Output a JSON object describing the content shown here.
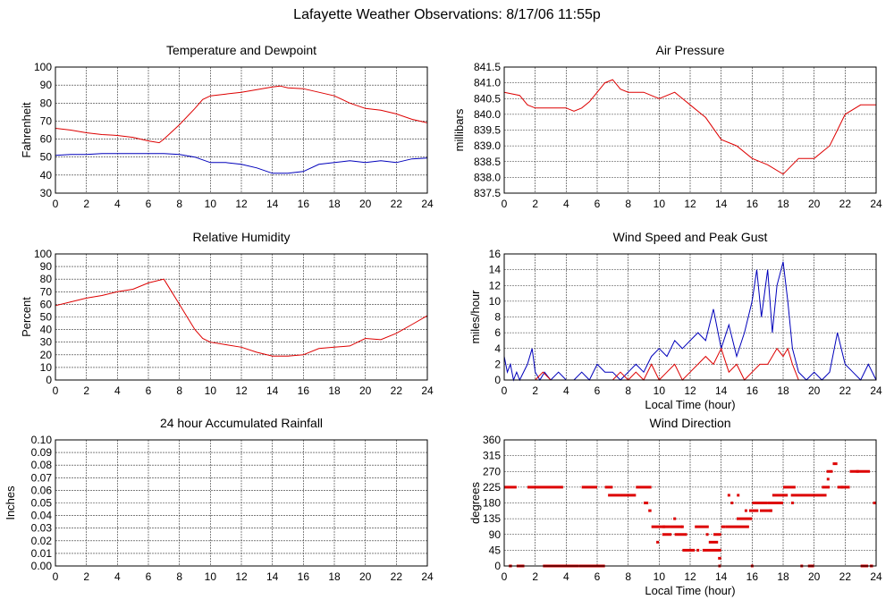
{
  "page": {
    "title": "Lafayette Weather Observations: 8/17/06 11:55p"
  },
  "colors": {
    "red": "#dd0000",
    "blue": "#0000bb"
  },
  "chart_data": [
    {
      "id": "temp",
      "type": "line",
      "title": "Temperature and Dewpoint",
      "ylabel": "Fahrenheit",
      "xlabel": "",
      "xlim": [
        0,
        24
      ],
      "ylim": [
        30,
        100
      ],
      "xticks": [
        0,
        2,
        4,
        6,
        8,
        10,
        12,
        14,
        16,
        18,
        20,
        22,
        24
      ],
      "yticks": [
        30,
        40,
        50,
        60,
        70,
        80,
        90,
        100
      ],
      "grid": true,
      "series": [
        {
          "color": "red",
          "x": [
            0,
            1,
            2,
            3,
            4,
            5,
            6,
            6.7,
            7,
            8,
            9,
            9.5,
            10,
            11,
            12,
            13,
            14,
            14.5,
            15,
            16,
            17,
            18,
            19,
            20,
            21,
            22,
            23,
            24
          ],
          "y": [
            66,
            65,
            63.5,
            62.5,
            62,
            61,
            59,
            58,
            60,
            68,
            77,
            82,
            84,
            85,
            86,
            87.5,
            89,
            89.5,
            88.5,
            88,
            86,
            84,
            80,
            77,
            76,
            74,
            71,
            69
          ]
        },
        {
          "color": "blue",
          "x": [
            0,
            1,
            2,
            3,
            4,
            5,
            6,
            7,
            8,
            9,
            10,
            11,
            12,
            13,
            14,
            15,
            16,
            17,
            18,
            19,
            20,
            21,
            22,
            23,
            24
          ],
          "y": [
            51,
            51.5,
            51.5,
            52,
            52,
            52,
            52,
            52,
            51.5,
            50,
            47,
            47,
            46,
            44,
            41,
            41,
            42,
            46,
            47,
            48,
            47,
            48,
            47,
            49,
            49.5
          ]
        }
      ]
    },
    {
      "id": "pressure",
      "type": "line",
      "title": "Air Pressure",
      "ylabel": "millibars",
      "xlabel": "",
      "xlim": [
        0,
        24
      ],
      "ylim": [
        837.5,
        841.5
      ],
      "xticks": [
        0,
        2,
        4,
        6,
        8,
        10,
        12,
        14,
        16,
        18,
        20,
        22,
        24
      ],
      "yticks": [
        837.5,
        838.0,
        838.5,
        839.0,
        839.5,
        840.0,
        840.5,
        841.0,
        841.5
      ],
      "ytick_labels": [
        "837.5",
        "838.0",
        "838.5",
        "839.0",
        "839.5",
        "840.0",
        "840.5",
        "841.0",
        "841.5"
      ],
      "grid": true,
      "series": [
        {
          "color": "red",
          "x": [
            0,
            1,
            1.5,
            2,
            3,
            4,
            4.5,
            5,
            5.5,
            6,
            6.5,
            7,
            7.5,
            8,
            9,
            10,
            11,
            12,
            13,
            14,
            15,
            16,
            17,
            18,
            19,
            20,
            21,
            21.5,
            22,
            23,
            24
          ],
          "y": [
            840.7,
            840.6,
            840.3,
            840.2,
            840.2,
            840.2,
            840.1,
            840.2,
            840.4,
            840.7,
            841.0,
            841.1,
            840.8,
            840.7,
            840.7,
            840.5,
            840.7,
            840.3,
            839.9,
            839.2,
            839.0,
            838.6,
            838.4,
            838.1,
            838.6,
            838.6,
            839.0,
            839.5,
            840.0,
            840.3,
            840.3
          ]
        }
      ]
    },
    {
      "id": "humidity",
      "type": "line",
      "title": "Relative Humidity",
      "ylabel": "Percent",
      "xlabel": "",
      "xlim": [
        0,
        24
      ],
      "ylim": [
        0,
        100
      ],
      "xticks": [
        0,
        2,
        4,
        6,
        8,
        10,
        12,
        14,
        16,
        18,
        20,
        22,
        24
      ],
      "yticks": [
        0,
        10,
        20,
        30,
        40,
        50,
        60,
        70,
        80,
        90,
        100
      ],
      "grid": true,
      "series": [
        {
          "color": "red",
          "x": [
            0,
            1,
            2,
            3,
            4,
            5,
            6,
            7,
            7.5,
            8,
            8.5,
            9,
            9.5,
            10,
            11,
            12,
            13,
            14,
            15,
            16,
            17,
            18,
            19,
            20,
            21,
            22,
            23,
            24
          ],
          "y": [
            59,
            62,
            65,
            67,
            70,
            72,
            77,
            80,
            70,
            60,
            50,
            40,
            33,
            30,
            28,
            26,
            22,
            19,
            19,
            20,
            25,
            26,
            27,
            33,
            32,
            37,
            44,
            51
          ]
        }
      ]
    },
    {
      "id": "wind",
      "type": "line",
      "title": "Wind Speed and Peak Gust",
      "ylabel": "miles/hour",
      "xlabel": "Local Time (hour)",
      "xlim": [
        0,
        24
      ],
      "ylim": [
        0,
        16
      ],
      "xticks": [
        0,
        2,
        4,
        6,
        8,
        10,
        12,
        14,
        16,
        18,
        20,
        22,
        24
      ],
      "yticks": [
        0,
        2,
        4,
        6,
        8,
        10,
        12,
        14,
        16
      ],
      "grid": true,
      "series": [
        {
          "color": "blue",
          "x": [
            0,
            0.2,
            0.4,
            0.6,
            0.8,
            1,
            1.5,
            1.8,
            2,
            2.3,
            2.6,
            3,
            3.5,
            4,
            4.5,
            5,
            5.5,
            6,
            6.5,
            7,
            7.5,
            8,
            8.5,
            9,
            9.5,
            10,
            10.5,
            11,
            11.5,
            12,
            12.5,
            13,
            13.5,
            14,
            14.5,
            15,
            15.5,
            16,
            16.3,
            16.6,
            17,
            17.3,
            17.6,
            18,
            18.3,
            18.6,
            19,
            19.5,
            20,
            20.5,
            21,
            21.5,
            22,
            22.5,
            23,
            23.5,
            24
          ],
          "y": [
            3,
            1,
            2,
            0,
            1,
            0,
            2,
            4,
            1,
            0,
            1,
            0,
            1,
            0,
            0,
            1,
            0,
            2,
            1,
            1,
            0,
            1,
            2,
            1,
            3,
            4,
            3,
            5,
            4,
            5,
            6,
            5,
            9,
            4,
            7,
            3,
            6,
            10,
            14,
            8,
            14,
            6,
            12,
            15,
            10,
            4,
            1,
            0,
            1,
            0,
            1,
            6,
            2,
            1,
            0,
            2,
            0
          ]
        },
        {
          "color": "red",
          "x": [
            0,
            1,
            2,
            2.5,
            3,
            4,
            5,
            6,
            7,
            7.5,
            8,
            8.5,
            9,
            9.5,
            10,
            10.5,
            11,
            11.5,
            12,
            12.5,
            13,
            13.5,
            14,
            14.5,
            15,
            15.5,
            16,
            16.5,
            17,
            17.3,
            17.6,
            18,
            18.3,
            18.6,
            19,
            20,
            21,
            22,
            23,
            24
          ],
          "y": [
            0,
            0,
            0,
            1,
            0,
            0,
            0,
            0,
            0,
            1,
            0,
            1,
            0,
            2,
            0,
            1,
            2,
            0,
            1,
            2,
            3,
            2,
            4,
            1,
            2,
            0,
            1,
            2,
            2,
            3,
            4,
            3,
            4,
            2,
            0,
            0,
            0,
            0,
            0,
            0
          ]
        }
      ]
    },
    {
      "id": "rain",
      "type": "line",
      "title": "24 hour Accumulated Rainfall",
      "ylabel": "Inches",
      "xlabel": "",
      "xlim": [
        0,
        24
      ],
      "ylim": [
        0,
        0.1
      ],
      "xticks": [
        0,
        2,
        4,
        6,
        8,
        10,
        12,
        14,
        16,
        18,
        20,
        22,
        24
      ],
      "yticks": [
        0,
        0.01,
        0.02,
        0.03,
        0.04,
        0.05,
        0.06,
        0.07,
        0.08,
        0.09,
        0.1
      ],
      "ytick_labels": [
        "0.00",
        "0.01",
        "0.02",
        "0.03",
        "0.04",
        "0.05",
        "0.06",
        "0.07",
        "0.08",
        "0.09",
        "0.10"
      ],
      "grid": true,
      "series": [
        {
          "color": "red",
          "x": [
            0,
            24
          ],
          "y": [
            0,
            0
          ]
        }
      ]
    },
    {
      "id": "direction",
      "type": "scatter",
      "title": "Wind Direction",
      "ylabel": "degrees",
      "xlabel": "Local Time (hour)",
      "xlim": [
        0,
        24
      ],
      "ylim": [
        0,
        360
      ],
      "xticks": [
        0,
        2,
        4,
        6,
        8,
        10,
        12,
        14,
        16,
        18,
        20,
        22,
        24
      ],
      "yticks": [
        0,
        45,
        90,
        135,
        180,
        225,
        270,
        315,
        360
      ],
      "grid": true,
      "series": [
        {
          "color": "red",
          "segments": [
            [
              0,
              0.8,
              225
            ],
            [
              0.3,
              0.5,
              0
            ],
            [
              0.8,
              1.3,
              0
            ],
            [
              1.5,
              3.8,
              225
            ],
            [
              2.5,
              4.8,
              0
            ],
            [
              4.8,
              6.5,
              0
            ],
            [
              5,
              6,
              225
            ],
            [
              6.5,
              7,
              225
            ],
            [
              6.7,
              8.5,
              202
            ],
            [
              8.5,
              9.5,
              225
            ],
            [
              9,
              9.3,
              180
            ],
            [
              9.3,
              9.5,
              158
            ],
            [
              9.5,
              10.7,
              112
            ],
            [
              10.2,
              10.8,
              90
            ],
            [
              10.7,
              11.5,
              112
            ],
            [
              11,
              11.8,
              90
            ],
            [
              11.5,
              12.3,
              45
            ],
            [
              12.3,
              13.2,
              112
            ],
            [
              12.8,
              14,
              45
            ],
            [
              13.2,
              13.8,
              68
            ],
            [
              13.5,
              14,
              90
            ],
            [
              13.8,
              14,
              22
            ],
            [
              14,
              14.3,
              112
            ],
            [
              14.3,
              15.8,
              112
            ],
            [
              15,
              16,
              135
            ],
            [
              15.8,
              16.4,
              158
            ],
            [
              16,
              17,
              180
            ],
            [
              16.5,
              17.3,
              158
            ],
            [
              17,
              18,
              180
            ],
            [
              17.3,
              18.3,
              202
            ],
            [
              18,
              18.8,
              225
            ],
            [
              18.5,
              20.8,
              202
            ],
            [
              19.6,
              20,
              0
            ],
            [
              20.5,
              21,
              225
            ],
            [
              20.8,
              21.2,
              270
            ],
            [
              21.2,
              21.5,
              292
            ],
            [
              21.5,
              22.3,
              225
            ],
            [
              22.3,
              23.6,
              270
            ],
            [
              23,
              23.4,
              0
            ],
            [
              23.6,
              23.8,
              0
            ],
            [
              23.8,
              24,
              180
            ]
          ],
          "points": [
            [
              9.9,
              68
            ],
            [
              10.3,
              112
            ],
            [
              11,
              135
            ],
            [
              11.5,
              112
            ],
            [
              12.5,
              45
            ],
            [
              13.1,
              90
            ],
            [
              13.9,
              0
            ],
            [
              14.5,
              202
            ],
            [
              14.7,
              180
            ],
            [
              15.1,
              202
            ],
            [
              15.6,
              158
            ],
            [
              16,
              0
            ],
            [
              17.2,
              158
            ],
            [
              18.6,
              180
            ],
            [
              19.2,
              0
            ],
            [
              20.9,
              248
            ],
            [
              21.8,
              225
            ],
            [
              22.8,
              270
            ],
            [
              23.4,
              0
            ]
          ]
        }
      ]
    }
  ]
}
